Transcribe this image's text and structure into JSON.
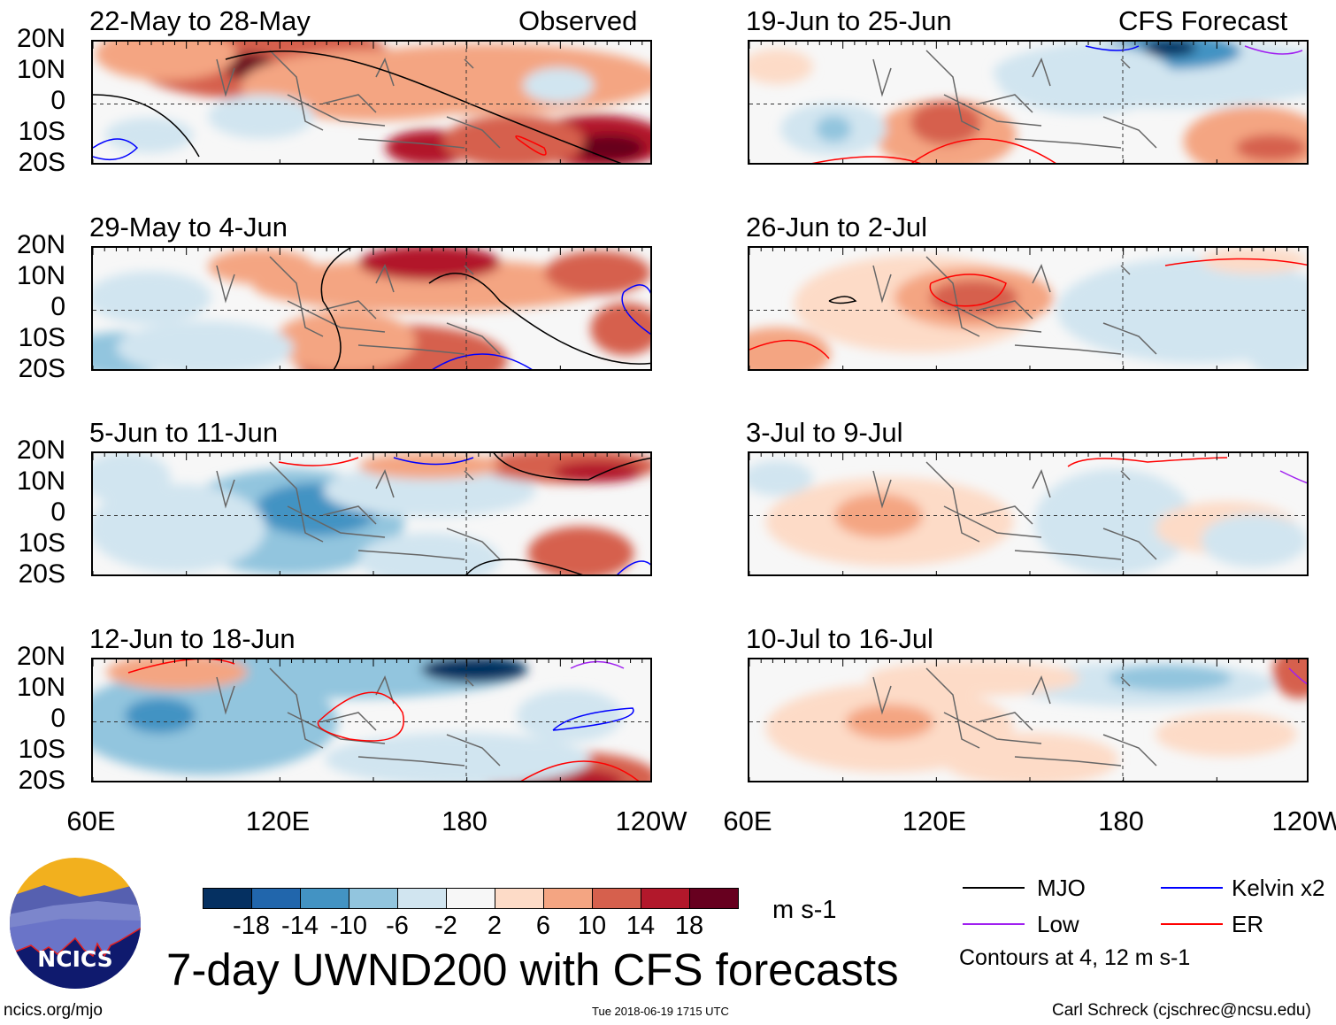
{
  "headers": {
    "observed": "Observed",
    "forecast": "CFS Forecast"
  },
  "panels": {
    "left": [
      {
        "title": "22-May to 28-May"
      },
      {
        "title": "29-May to 4-Jun"
      },
      {
        "title": "5-Jun to 11-Jun"
      },
      {
        "title": "12-Jun to 18-Jun"
      }
    ],
    "right": [
      {
        "title": "19-Jun to 25-Jun"
      },
      {
        "title": "26-Jun to 2-Jul"
      },
      {
        "title": "3-Jul to 9-Jul"
      },
      {
        "title": "10-Jul to 16-Jul"
      }
    ]
  },
  "y_ticks": [
    "20N",
    "10N",
    "0",
    "10S",
    "20S"
  ],
  "x_ticks": [
    "60E",
    "120E",
    "180",
    "120W"
  ],
  "colorbar": {
    "colors": [
      "#053061",
      "#2166ac",
      "#4393c3",
      "#92c5de",
      "#d1e5f0",
      "#f7f7f7",
      "#fddbc7",
      "#f4a582",
      "#d6604d",
      "#b2182b",
      "#67001f"
    ],
    "labels": [
      "-18",
      "-14",
      "-10",
      "-6",
      "-2",
      "2",
      "6",
      "10",
      "14",
      "18"
    ],
    "units": "m s-1"
  },
  "legend": {
    "items": [
      {
        "label": "MJO",
        "color": "#000000"
      },
      {
        "label": "Kelvin x2",
        "color": "#0000ff"
      },
      {
        "label": "Low",
        "color": "#a020f0"
      },
      {
        "label": "ER",
        "color": "#ff0000"
      }
    ],
    "note": "Contours at 4, 12 m s-1"
  },
  "title": "7-day UWND200 with CFS forecasts",
  "logo_text": "NCICS",
  "footer": {
    "url": "ncics.org/mjo",
    "timestamp": "Tue 2018-06-19 1715 UTC",
    "credit": "Carl Schreck (cjschrec@ncsu.edu)"
  }
}
